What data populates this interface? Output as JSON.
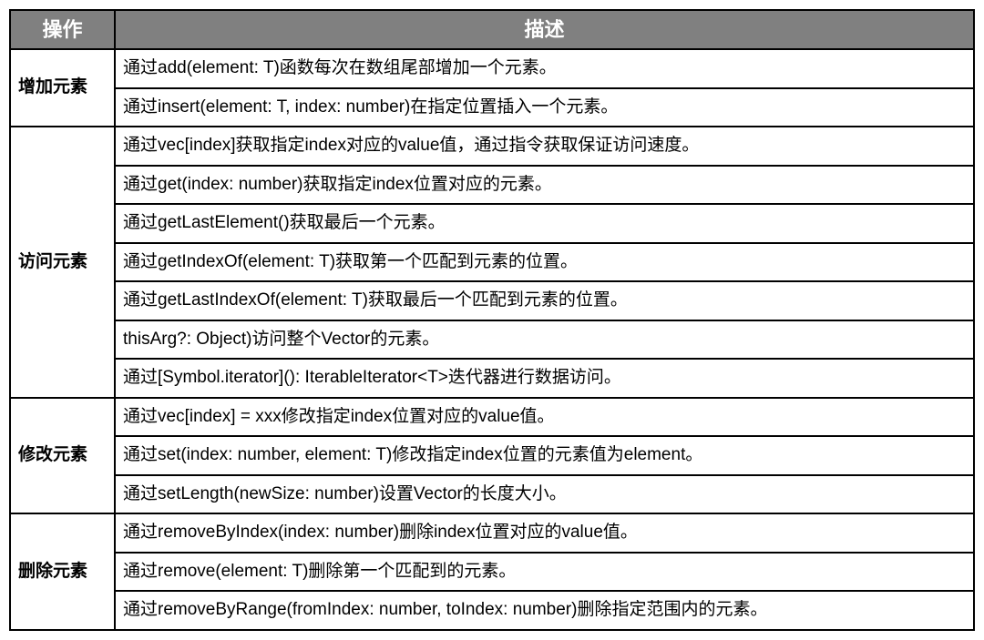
{
  "table": {
    "header_bg": "#808080",
    "header_fg": "#ffffff",
    "border_color": "#000000",
    "columns": [
      {
        "key": "op",
        "label": "操作"
      },
      {
        "key": "desc",
        "label": "描述"
      }
    ],
    "groups": [
      {
        "op": "增加元素",
        "rows": [
          "通过add(element: T)函数每次在数组尾部增加一个元素。",
          "通过insert(element: T, index: number)在指定位置插入一个元素。"
        ]
      },
      {
        "op": "访问元素",
        "rows": [
          "通过vec[index]获取指定index对应的value值，通过指令获取保证访问速度。",
          "通过get(index: number)获取指定index位置对应的元素。",
          "通过getLastElement()获取最后一个元素。",
          "通过getIndexOf(element: T)获取第一个匹配到元素的位置。",
          "通过getLastIndexOf(element: T)获取最后一个匹配到元素的位置。",
          "thisArg?: Object)访问整个Vector的元素。",
          "通过[Symbol.iterator](): IterableIterator<T>迭代器进行数据访问。"
        ]
      },
      {
        "op": "修改元素",
        "rows": [
          "通过vec[index] = xxx修改指定index位置对应的value值。",
          "通过set(index: number, element: T)修改指定index位置的元素值为element。",
          "通过setLength(newSize: number)设置Vector的长度大小。"
        ]
      },
      {
        "op": "删除元素",
        "rows": [
          "通过removeByIndex(index: number)删除index位置对应的value值。",
          "通过remove(element: T)删除第一个匹配到的元素。",
          "通过removeByRange(fromIndex: number, toIndex: number)删除指定范围内的元素。"
        ]
      }
    ]
  }
}
